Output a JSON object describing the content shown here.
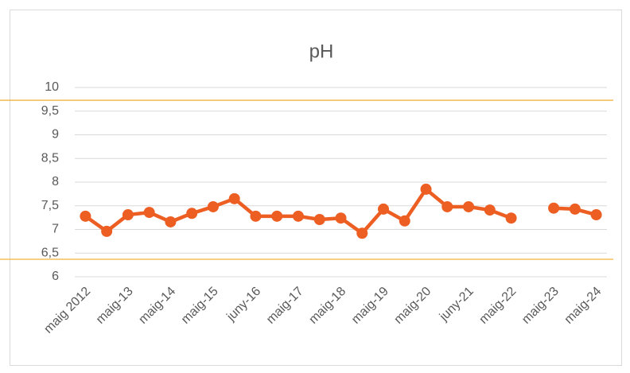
{
  "chart_data": {
    "type": "line",
    "title": "pH",
    "categories": [
      "maig 2012",
      null,
      "maig-13",
      null,
      "maig-14",
      null,
      "maig-15",
      null,
      "juny-16",
      null,
      "maig-17",
      null,
      "maig-18",
      null,
      "maig-19",
      null,
      "maig-20",
      null,
      "juny-21",
      null,
      "maig-22",
      null,
      "maig-23",
      null,
      "maig-24"
    ],
    "series": [
      {
        "name": "pH",
        "color": "#ed5e23",
        "values": [
          7.28,
          6.96,
          7.31,
          7.36,
          7.16,
          7.34,
          7.48,
          7.65,
          7.28,
          7.28,
          7.28,
          7.21,
          7.24,
          6.92,
          7.43,
          7.18,
          7.85,
          7.48,
          7.48,
          7.41,
          7.24,
          null,
          7.45,
          7.43,
          7.31
        ]
      }
    ],
    "ylim": [
      6,
      10
    ],
    "yticks": [
      6,
      {
        "value": 6.5,
        "label": "6,5"
      },
      7,
      {
        "value": 7.5,
        "label": "7,5"
      },
      8,
      {
        "value": 8.5,
        "label": "8,5"
      },
      9,
      {
        "value": 9.5,
        "label": "9,5"
      },
      10
    ],
    "grid": true,
    "reference_lines": [
      {
        "value": 9.73,
        "color": "#f2b33d"
      },
      {
        "value": 6.37,
        "color": "#f2b33d"
      }
    ]
  }
}
